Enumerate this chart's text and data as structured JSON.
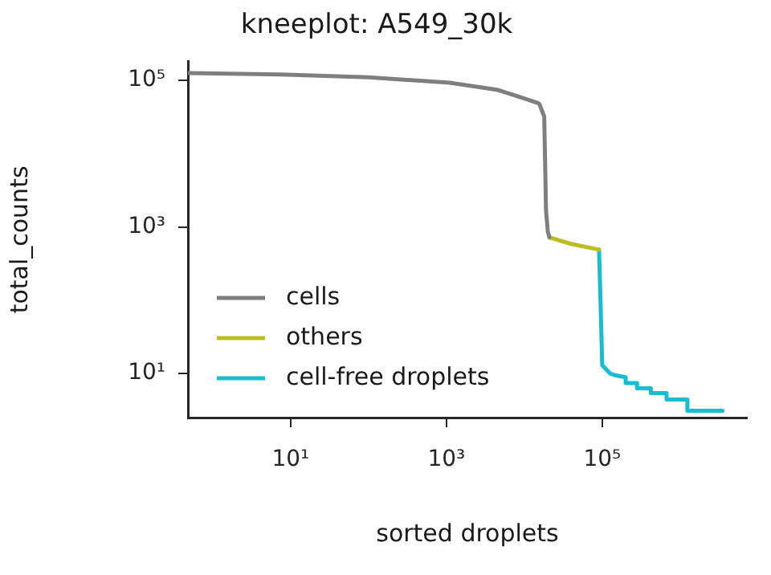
{
  "chart_data": {
    "type": "line",
    "title": "kneeplot: A549_30k",
    "xlabel": "sorted droplets",
    "ylabel": "total_counts",
    "log": "xy",
    "grid": false,
    "legend": "bottom left",
    "marker": "none",
    "line_style": "solid",
    "xlim": [
      0.48,
      7200000
    ],
    "ylim": [
      2.5,
      180000
    ],
    "xticks": [
      {
        "value": 10,
        "label": "10¹"
      },
      {
        "value": 1000,
        "label": "10³"
      },
      {
        "value": 100000,
        "label": "10⁵"
      }
    ],
    "yticks": [
      {
        "value": 10,
        "label": "10¹"
      },
      {
        "value": 1000,
        "label": "10³"
      },
      {
        "value": 100000,
        "label": "10⁵"
      }
    ],
    "series": [
      {
        "name": "cells",
        "color": "#7f7f7f",
        "x": [
          0.48,
          7.5,
          100,
          1100,
          4600,
          9300,
          15000,
          15700,
          18000,
          19000,
          20000,
          21000
        ],
        "values": [
          126000,
          120000,
          110000,
          93000,
          74000,
          58000,
          49000,
          47000,
          32000,
          1660,
          870,
          720
        ]
      },
      {
        "name": "others",
        "color": "#bcbd22",
        "x": [
          21000,
          39000,
          91000
        ],
        "values": [
          720,
          590,
          490
        ]
      },
      {
        "name": "cell-free droplets",
        "color": "#17becf",
        "x": [
          91000,
          95000,
          100000,
          126000,
          150000,
          200000,
          200000,
          280000,
          280000,
          420000,
          420000,
          670000,
          670000,
          1240000,
          1240000,
          2000000,
          2000000,
          3500000
        ],
        "values": [
          490,
          100,
          13,
          10,
          9.4,
          8.9,
          7.4,
          7.4,
          6.3,
          6.3,
          5.4,
          5.4,
          4.4,
          4.4,
          3.1,
          3.1,
          3.1,
          3.1
        ]
      }
    ]
  }
}
